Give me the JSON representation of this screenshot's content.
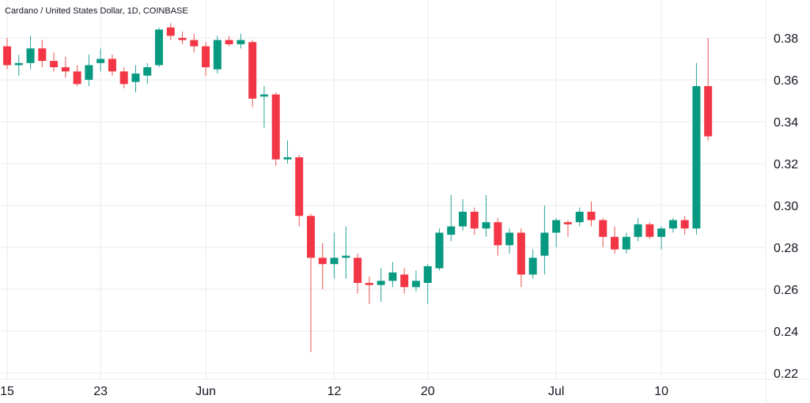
{
  "chart_data": {
    "type": "candlestick",
    "title": "Cardano / United States Dollar, 1D, COINBASE",
    "ylim": [
      0.22,
      0.39
    ],
    "y_ticks": [
      "0.22",
      "0.24",
      "0.26",
      "0.28",
      "0.30",
      "0.32",
      "0.34",
      "0.36",
      "0.38"
    ],
    "x_ticks": [
      "15",
      "23",
      "Jun",
      "12",
      "20",
      "Jul",
      "10"
    ],
    "grid": true,
    "colors": {
      "up": "#26a69a",
      "down": "#ef5350",
      "up_body": "#089981",
      "down_body": "#f23645"
    },
    "candles": [
      {
        "date": "May 15",
        "open": 0.376,
        "high": 0.38,
        "low": 0.365,
        "close": 0.367
      },
      {
        "date": "May 16",
        "open": 0.367,
        "high": 0.372,
        "low": 0.362,
        "close": 0.368
      },
      {
        "date": "May 17",
        "open": 0.368,
        "high": 0.381,
        "low": 0.365,
        "close": 0.375
      },
      {
        "date": "May 18",
        "open": 0.375,
        "high": 0.379,
        "low": 0.366,
        "close": 0.369
      },
      {
        "date": "May 19",
        "open": 0.369,
        "high": 0.373,
        "low": 0.364,
        "close": 0.366
      },
      {
        "date": "May 20",
        "open": 0.366,
        "high": 0.371,
        "low": 0.361,
        "close": 0.364
      },
      {
        "date": "May 21",
        "open": 0.364,
        "high": 0.367,
        "low": 0.357,
        "close": 0.358
      },
      {
        "date": "May 22",
        "open": 0.36,
        "high": 0.372,
        "low": 0.357,
        "close": 0.367
      },
      {
        "date": "May 23",
        "open": 0.368,
        "high": 0.375,
        "low": 0.364,
        "close": 0.37
      },
      {
        "date": "May 24",
        "open": 0.37,
        "high": 0.372,
        "low": 0.362,
        "close": 0.364
      },
      {
        "date": "May 25",
        "open": 0.364,
        "high": 0.366,
        "low": 0.356,
        "close": 0.358
      },
      {
        "date": "May 26",
        "open": 0.359,
        "high": 0.367,
        "low": 0.354,
        "close": 0.363
      },
      {
        "date": "May 27",
        "open": 0.362,
        "high": 0.368,
        "low": 0.358,
        "close": 0.366
      },
      {
        "date": "May 28",
        "open": 0.367,
        "high": 0.385,
        "low": 0.366,
        "close": 0.384
      },
      {
        "date": "May 29",
        "open": 0.385,
        "high": 0.387,
        "low": 0.379,
        "close": 0.381
      },
      {
        "date": "May 30",
        "open": 0.38,
        "high": 0.383,
        "low": 0.377,
        "close": 0.379
      },
      {
        "date": "May 31",
        "open": 0.379,
        "high": 0.382,
        "low": 0.373,
        "close": 0.376
      },
      {
        "date": "Jun 1",
        "open": 0.376,
        "high": 0.378,
        "low": 0.362,
        "close": 0.366
      },
      {
        "date": "Jun 2",
        "open": 0.365,
        "high": 0.381,
        "low": 0.363,
        "close": 0.379
      },
      {
        "date": "Jun 3",
        "open": 0.379,
        "high": 0.381,
        "low": 0.376,
        "close": 0.377
      },
      {
        "date": "Jun 4",
        "open": 0.377,
        "high": 0.382,
        "low": 0.375,
        "close": 0.379
      },
      {
        "date": "Jun 5",
        "open": 0.378,
        "high": 0.379,
        "low": 0.347,
        "close": 0.351
      },
      {
        "date": "Jun 6",
        "open": 0.352,
        "high": 0.357,
        "low": 0.337,
        "close": 0.353
      },
      {
        "date": "Jun 7",
        "open": 0.353,
        "high": 0.354,
        "low": 0.319,
        "close": 0.322
      },
      {
        "date": "Jun 8",
        "open": 0.322,
        "high": 0.331,
        "low": 0.32,
        "close": 0.323
      },
      {
        "date": "Jun 9",
        "open": 0.323,
        "high": 0.324,
        "low": 0.29,
        "close": 0.295
      },
      {
        "date": "Jun 10",
        "open": 0.295,
        "high": 0.296,
        "low": 0.23,
        "close": 0.275
      },
      {
        "date": "Jun 11",
        "open": 0.275,
        "high": 0.282,
        "low": 0.26,
        "close": 0.272
      },
      {
        "date": "Jun 12",
        "open": 0.272,
        "high": 0.287,
        "low": 0.265,
        "close": 0.275
      },
      {
        "date": "Jun 13",
        "open": 0.275,
        "high": 0.29,
        "low": 0.265,
        "close": 0.276
      },
      {
        "date": "Jun 14",
        "open": 0.275,
        "high": 0.277,
        "low": 0.258,
        "close": 0.263
      },
      {
        "date": "Jun 15",
        "open": 0.263,
        "high": 0.266,
        "low": 0.253,
        "close": 0.262
      },
      {
        "date": "Jun 16",
        "open": 0.262,
        "high": 0.27,
        "low": 0.254,
        "close": 0.264
      },
      {
        "date": "Jun 17",
        "open": 0.264,
        "high": 0.273,
        "low": 0.261,
        "close": 0.268
      },
      {
        "date": "Jun 18",
        "open": 0.267,
        "high": 0.27,
        "low": 0.258,
        "close": 0.261
      },
      {
        "date": "Jun 19",
        "open": 0.261,
        "high": 0.269,
        "low": 0.259,
        "close": 0.264
      },
      {
        "date": "Jun 20",
        "open": 0.263,
        "high": 0.272,
        "low": 0.253,
        "close": 0.271
      },
      {
        "date": "Jun 21",
        "open": 0.27,
        "high": 0.289,
        "low": 0.269,
        "close": 0.287
      },
      {
        "date": "Jun 22",
        "open": 0.286,
        "high": 0.305,
        "low": 0.283,
        "close": 0.29
      },
      {
        "date": "Jun 23",
        "open": 0.29,
        "high": 0.303,
        "low": 0.288,
        "close": 0.297
      },
      {
        "date": "Jun 24",
        "open": 0.297,
        "high": 0.299,
        "low": 0.286,
        "close": 0.289
      },
      {
        "date": "Jun 25",
        "open": 0.289,
        "high": 0.305,
        "low": 0.285,
        "close": 0.292
      },
      {
        "date": "Jun 26",
        "open": 0.292,
        "high": 0.294,
        "low": 0.276,
        "close": 0.281
      },
      {
        "date": "Jun 27",
        "open": 0.281,
        "high": 0.289,
        "low": 0.277,
        "close": 0.287
      },
      {
        "date": "Jun 28",
        "open": 0.287,
        "high": 0.289,
        "low": 0.261,
        "close": 0.267
      },
      {
        "date": "Jun 29",
        "open": 0.267,
        "high": 0.279,
        "low": 0.265,
        "close": 0.275
      },
      {
        "date": "Jun 30",
        "open": 0.276,
        "high": 0.3,
        "low": 0.267,
        "close": 0.287
      },
      {
        "date": "Jul 1",
        "open": 0.287,
        "high": 0.294,
        "low": 0.28,
        "close": 0.293
      },
      {
        "date": "Jul 2",
        "open": 0.292,
        "high": 0.293,
        "low": 0.285,
        "close": 0.291
      },
      {
        "date": "Jul 3",
        "open": 0.292,
        "high": 0.299,
        "low": 0.29,
        "close": 0.297
      },
      {
        "date": "Jul 4",
        "open": 0.297,
        "high": 0.302,
        "low": 0.29,
        "close": 0.293
      },
      {
        "date": "Jul 5",
        "open": 0.293,
        "high": 0.294,
        "low": 0.28,
        "close": 0.285
      },
      {
        "date": "Jul 6",
        "open": 0.285,
        "high": 0.29,
        "low": 0.277,
        "close": 0.279
      },
      {
        "date": "Jul 7",
        "open": 0.279,
        "high": 0.287,
        "low": 0.277,
        "close": 0.285
      },
      {
        "date": "Jul 8",
        "open": 0.285,
        "high": 0.294,
        "low": 0.283,
        "close": 0.291
      },
      {
        "date": "Jul 9",
        "open": 0.291,
        "high": 0.292,
        "low": 0.284,
        "close": 0.285
      },
      {
        "date": "Jul 10",
        "open": 0.285,
        "high": 0.29,
        "low": 0.279,
        "close": 0.289
      },
      {
        "date": "Jul 11",
        "open": 0.289,
        "high": 0.294,
        "low": 0.287,
        "close": 0.293
      },
      {
        "date": "Jul 12",
        "open": 0.293,
        "high": 0.295,
        "low": 0.286,
        "close": 0.289
      },
      {
        "date": "Jul 13",
        "open": 0.289,
        "high": 0.368,
        "low": 0.286,
        "close": 0.357
      },
      {
        "date": "Jul 14",
        "open": 0.357,
        "high": 0.38,
        "low": 0.331,
        "close": 0.333
      }
    ]
  }
}
